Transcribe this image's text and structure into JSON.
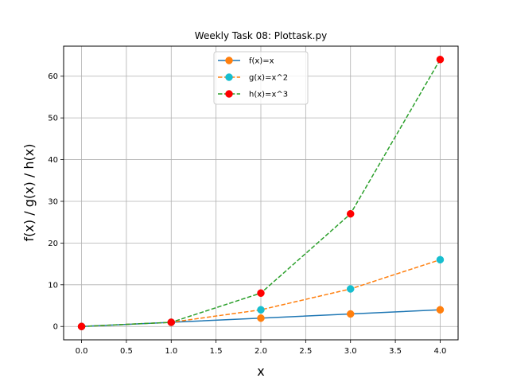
{
  "chart_data": {
    "type": "line",
    "title": "Weekly Task 08: Plottask.py",
    "xlabel": "x",
    "ylabel": "f(x) / g(x) / h(x)",
    "x": [
      0,
      1,
      2,
      3,
      4
    ],
    "xlim": [
      -0.2,
      4.2
    ],
    "ylim": [
      -3.2,
      67.2
    ],
    "xticks": [
      "0.0",
      "0.5",
      "1.0",
      "1.5",
      "2.0",
      "2.5",
      "3.0",
      "3.5",
      "4.0"
    ],
    "yticks": [
      "0",
      "10",
      "20",
      "30",
      "40",
      "50",
      "60"
    ],
    "grid": true,
    "legend_position": "top-center",
    "series": [
      {
        "name": "f(x)=x",
        "values": [
          0,
          1,
          2,
          3,
          4
        ],
        "line_color": "#1f77b4",
        "line_style": "solid",
        "marker_color": "#ff7f0e"
      },
      {
        "name": "g(x)=x^2",
        "values": [
          0,
          1,
          4,
          9,
          16
        ],
        "line_color": "#ff7f0e",
        "line_style": "dashed",
        "marker_color": "#17becf"
      },
      {
        "name": "h(x)=x^3",
        "values": [
          0,
          1,
          8,
          27,
          64
        ],
        "line_color": "#2ca02c",
        "line_style": "dashed",
        "marker_color": "#ff0000"
      }
    ]
  }
}
